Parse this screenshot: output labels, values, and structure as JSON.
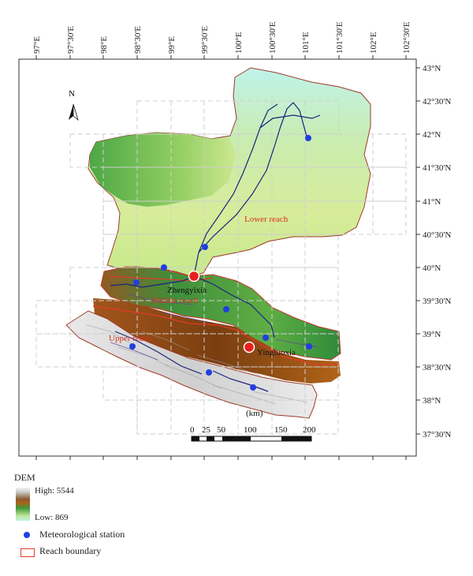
{
  "map": {
    "lon_labels": [
      "97°E",
      "97°30'E",
      "98°E",
      "98°30'E",
      "99°E",
      "99°30'E",
      "100°E",
      "100°30'E",
      "101°E",
      "101°30'E",
      "102°E",
      "102°30'E"
    ],
    "lat_labels": [
      "43°N",
      "42°30'N",
      "42°N",
      "41°30'N",
      "41°N",
      "40°30'N",
      "40°N",
      "39°30'N",
      "39°N",
      "38°30'N",
      "38°N",
      "37°30'N"
    ],
    "north_label": "N",
    "reach_labels": {
      "lower": "Lower reach",
      "middle": "Middle reach",
      "upper": "Upper reach"
    },
    "hydro_stations": {
      "zhengyixia": "Zhengyixia",
      "yingluoxia": "Yingluoxia"
    },
    "scale": {
      "unit": "(km)",
      "labels": [
        "0",
        "25",
        "50",
        "100",
        "150",
        "200"
      ]
    },
    "colors": {
      "station": "#1f3fe0",
      "hydro_station": "#e8201c",
      "reach_boundary": "#e23a2a",
      "river": "#1a237e"
    }
  },
  "legend": {
    "title": "DEM",
    "high": "High: 5544",
    "low": "Low: 869",
    "station": "Meteorological station",
    "reach_boundary": "Reach boundary"
  }
}
